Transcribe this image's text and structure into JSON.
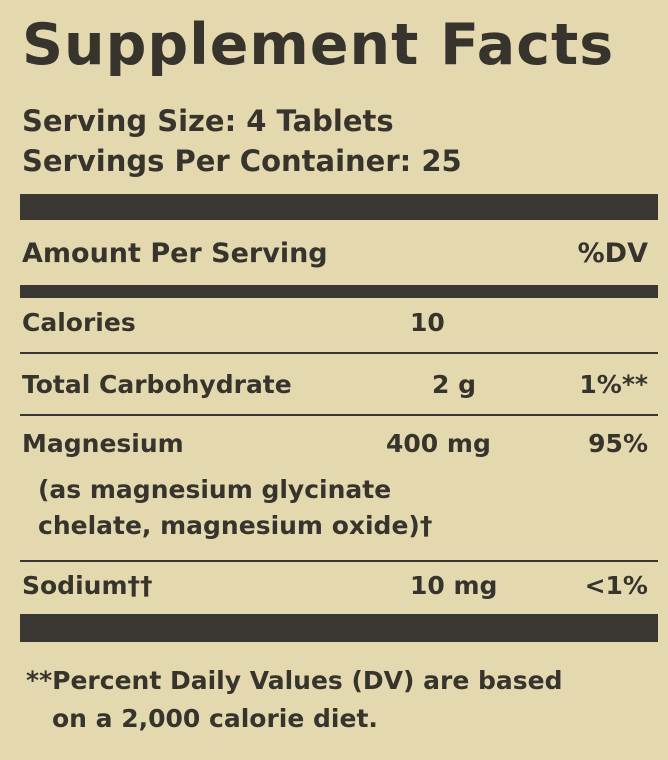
{
  "header": {
    "title": "Supplement Facts",
    "serving_size": "Serving Size: 4 Tablets",
    "servings_per_container": "Servings Per Container: 25"
  },
  "table": {
    "columns": [
      "Amount Per Serving",
      "%DV"
    ],
    "rows": [
      {
        "name": "Calories",
        "amount": "10"
      },
      {
        "name": "Total Carbohydrate",
        "amount": "2 g",
        "dv": "1%**"
      },
      {
        "name": "Magnesium",
        "amount": "400 mg",
        "dv": "95%",
        "detail": [
          "(as magnesium glycinate",
          "chelate, magnesium oxide)†"
        ]
      },
      {
        "name": "Sodium††",
        "amount": "10 mg",
        "dv": "<1%"
      }
    ]
  },
  "footnote": [
    "**Percent Daily Values (DV) are based",
    "on a 2,000 calorie diet."
  ]
}
